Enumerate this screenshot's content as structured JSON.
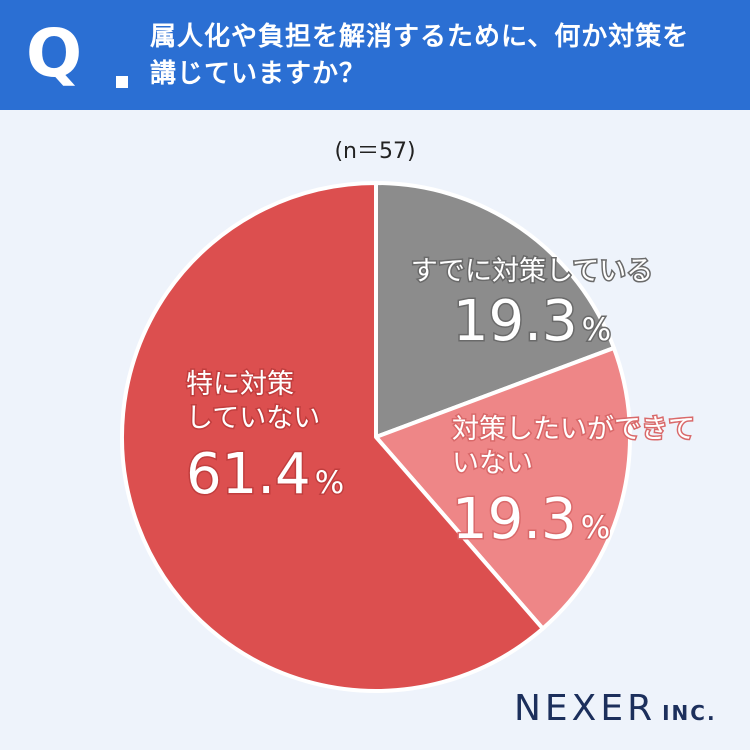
{
  "header": {
    "q_label": "Q",
    "question_lines": [
      "属人化や負担を解消するために、何か対策を",
      "講じていますか？"
    ]
  },
  "sample_size": "(n＝57)",
  "chart_data": {
    "type": "pie",
    "title": "属人化や負担を解消するために、何か対策を講じていますか？",
    "n": 57,
    "slices": [
      {
        "label_lines": [
          "すでに対策している"
        ],
        "value": 19.3,
        "value_label": "19.3",
        "unit": "%",
        "color": "#8c8c8c"
      },
      {
        "label_lines": [
          "対策したいができて",
          "いない"
        ],
        "value": 19.3,
        "value_label": "19.3",
        "unit": "%",
        "color": "#ee8687"
      },
      {
        "label_lines": [
          "特に対策",
          "していない"
        ],
        "value": 61.4,
        "value_label": "61.4",
        "unit": "%",
        "color": "#dc4f4f"
      }
    ],
    "start_angle_deg": 0,
    "direction": "clockwise"
  },
  "logo": {
    "main": "NEXER",
    "suffix": "INC."
  },
  "colors": {
    "header_bg": "#2b6fd3",
    "page_bg": "#eef3fb",
    "text_dark": "#222222",
    "logo": "#1c2f5c"
  }
}
